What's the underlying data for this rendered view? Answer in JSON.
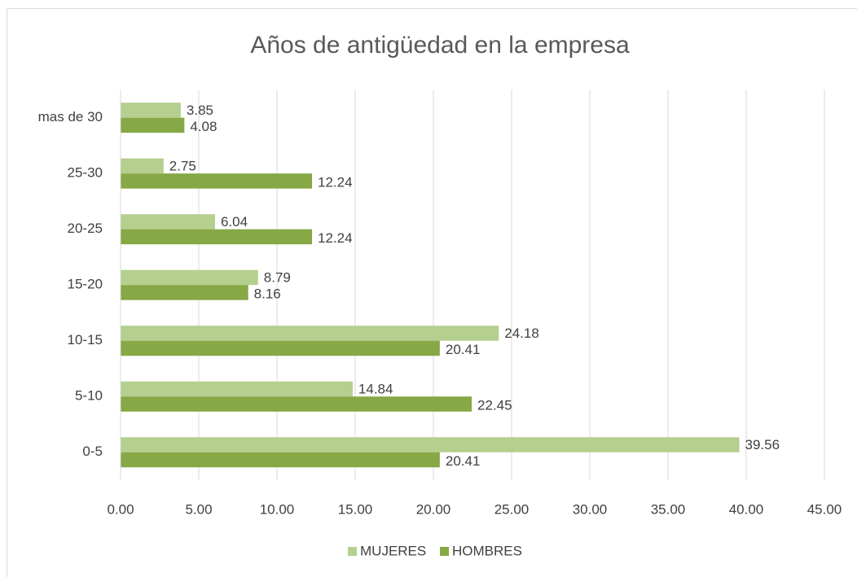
{
  "chart_data": {
    "type": "hbar",
    "title": "Años de antigüedad en la empresa",
    "categories": [
      "0-5",
      "5-10",
      "10-15",
      "15-20",
      "20-25",
      "25-30",
      "mas de 30"
    ],
    "series": [
      {
        "name": "MUJERES",
        "color": "#b5cf8f",
        "values": [
          39.56,
          14.84,
          24.18,
          8.79,
          6.04,
          2.75,
          3.85
        ]
      },
      {
        "name": "HOMBRES",
        "color": "#86a845",
        "values": [
          20.41,
          22.45,
          20.41,
          8.16,
          12.24,
          12.24,
          4.08
        ]
      }
    ],
    "xlim": [
      0,
      45
    ],
    "xticks": [
      {
        "value": 0,
        "label": "0.00"
      },
      {
        "value": 5,
        "label": "5.00"
      },
      {
        "value": 10,
        "label": "10.00"
      },
      {
        "value": 15,
        "label": "15.00"
      },
      {
        "value": 20,
        "label": "20.00"
      },
      {
        "value": 25,
        "label": "25.00"
      },
      {
        "value": 30,
        "label": "30.00"
      },
      {
        "value": 35,
        "label": "35.00"
      },
      {
        "value": 40,
        "label": "40.00"
      },
      {
        "value": 45,
        "label": "45.00"
      }
    ],
    "grid": true,
    "legend": "bottom"
  }
}
